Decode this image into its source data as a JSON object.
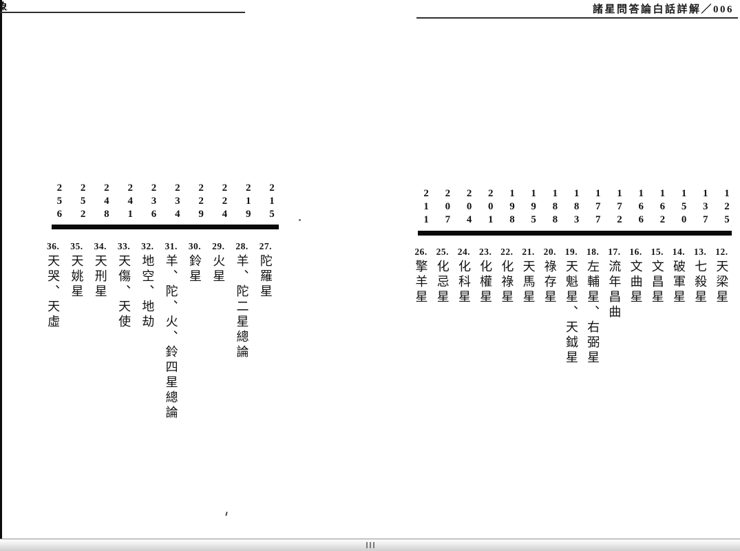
{
  "window": {
    "running_head": "諸星問答論白話詳解／006",
    "corner_fragment": "象",
    "colors": {
      "ink": "#121212",
      "page_bg": "#ffffff",
      "rule": "#2e2e2e",
      "scrollbar_border": "#8f8f8f"
    }
  },
  "right_page": {
    "items": [
      {
        "num": "12.",
        "title": "天梁星",
        "page": "125"
      },
      {
        "num": "13.",
        "title": "七殺星",
        "page": "137"
      },
      {
        "num": "14.",
        "title": "破軍星",
        "page": "150"
      },
      {
        "num": "15.",
        "title": "文昌星",
        "page": "162"
      },
      {
        "num": "16.",
        "title": "文曲星",
        "page": "166"
      },
      {
        "num": "17.",
        "title": "流年昌曲",
        "page": "172"
      },
      {
        "num": "18.",
        "title": "左輔星、右弼星",
        "page": "177"
      },
      {
        "num": "19.",
        "title": "天魁星、天鉞星",
        "page": "183"
      },
      {
        "num": "20.",
        "title": "祿存星",
        "page": "188"
      },
      {
        "num": "21.",
        "title": "天馬星",
        "page": "195"
      },
      {
        "num": "22.",
        "title": "化祿星",
        "page": "198"
      },
      {
        "num": "23.",
        "title": "化權星",
        "page": "201"
      },
      {
        "num": "24.",
        "title": "化科星",
        "page": "204"
      },
      {
        "num": "25.",
        "title": "化忌星",
        "page": "207"
      },
      {
        "num": "26.",
        "title": "擎羊星",
        "page": "211"
      }
    ]
  },
  "left_page": {
    "items": [
      {
        "num": "27.",
        "title": "陀羅星",
        "page": "215"
      },
      {
        "num": "28.",
        "title": "羊、陀二星總論",
        "page": "219"
      },
      {
        "num": "29.",
        "title": "火星",
        "page": "224"
      },
      {
        "num": "30.",
        "title": "鈴星",
        "page": "229"
      },
      {
        "num": "31.",
        "title": "羊、陀、火、鈴四星總論",
        "page": "234"
      },
      {
        "num": "32.",
        "title": "地空、地劫",
        "page": "236"
      },
      {
        "num": "33.",
        "title": "天傷、天使",
        "page": "241"
      },
      {
        "num": "34.",
        "title": "天刑星",
        "page": "248"
      },
      {
        "num": "35.",
        "title": "天姚星",
        "page": "252"
      },
      {
        "num": "36.",
        "title": "天哭、天虛",
        "page": "256"
      }
    ]
  }
}
